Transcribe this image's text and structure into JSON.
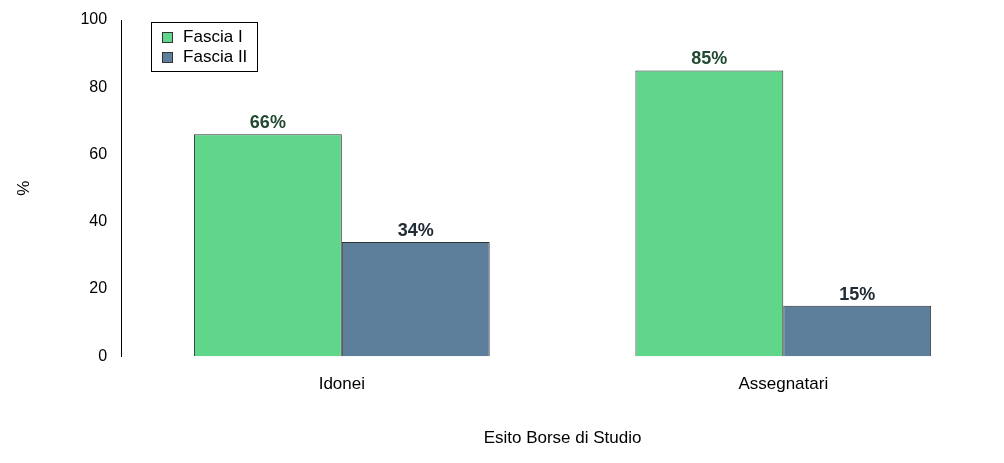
{
  "chart_data": {
    "type": "bar",
    "xlabel": "Esito Borse di Studio",
    "ylabel": "%",
    "categories": [
      "Idonei",
      "Assegnatari"
    ],
    "series": [
      {
        "name": "Fascia I",
        "color": "#5fd68a",
        "values": [
          66,
          85
        ],
        "value_labels": [
          "66%",
          "85%"
        ]
      },
      {
        "name": "Fascia II",
        "color": "#5e7f9b",
        "values": [
          34,
          15
        ],
        "value_labels": [
          "34%",
          "15%"
        ]
      }
    ],
    "ylim": [
      0,
      100
    ],
    "yticks": [
      0,
      20,
      40,
      60,
      80,
      100
    ],
    "grid": false,
    "legend": "top left"
  }
}
